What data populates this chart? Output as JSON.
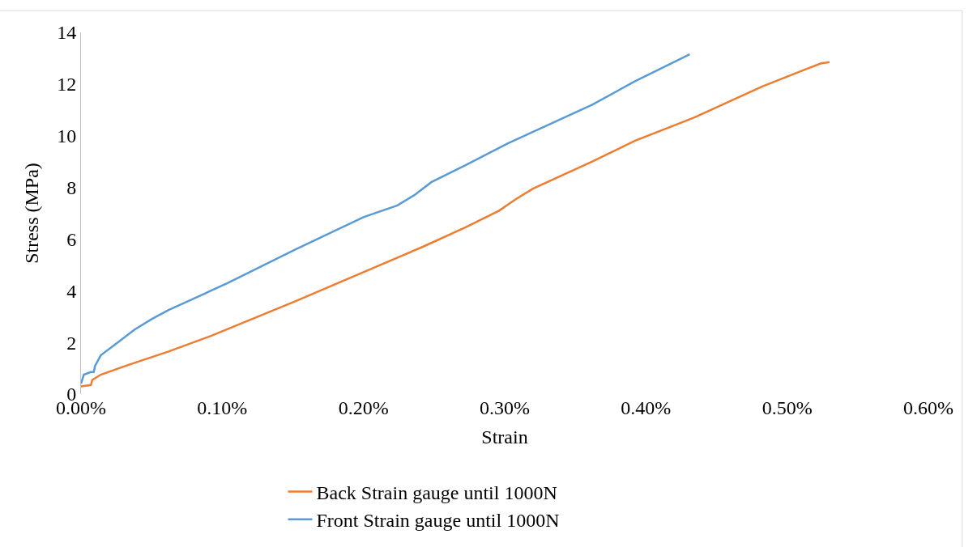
{
  "chart_data": {
    "type": "line",
    "xlabel": "Strain",
    "ylabel": "Stress (MPa)",
    "xlim": [
      0,
      0.006
    ],
    "xticks": [
      {
        "value": 0,
        "label": "0.00%"
      },
      {
        "value": 0.001,
        "label": "0.10%"
      },
      {
        "value": 0.002,
        "label": "0.20%"
      },
      {
        "value": 0.003,
        "label": "0.30%"
      },
      {
        "value": 0.004,
        "label": "0.40%"
      },
      {
        "value": 0.005,
        "label": "0.50%"
      },
      {
        "value": 0.006,
        "label": "0.60%"
      }
    ],
    "ylim": [
      0,
      14
    ],
    "yticks": [
      0,
      2,
      4,
      6,
      8,
      10,
      12,
      14
    ],
    "grid": false,
    "legend": "bottom",
    "marker": "none",
    "line_style": "solid",
    "series": [
      {
        "name": "Back Strain gauge until 1000N",
        "color": "#ed7d31",
        "x": [
          0,
          7e-05,
          8e-05,
          0.00014,
          0.00032,
          0.00062,
          0.00092,
          0.00152,
          0.00212,
          0.00242,
          0.00272,
          0.00296,
          0.00308,
          0.0032,
          0.00362,
          0.00392,
          0.00434,
          0.00482,
          0.00512,
          0.00524,
          0.0053
        ],
        "values": [
          0.3,
          0.35,
          0.55,
          0.75,
          1.1,
          1.65,
          2.25,
          3.6,
          5.0,
          5.7,
          6.45,
          7.1,
          7.55,
          7.95,
          9.0,
          9.8,
          10.7,
          11.9,
          12.55,
          12.8,
          12.85
        ]
      },
      {
        "name": "Front Strain gauge until 1000N",
        "color": "#5b9bd5",
        "x": [
          0,
          2e-05,
          7e-05,
          9e-05,
          0.0001,
          0.00014,
          0.00026,
          0.00038,
          0.0005,
          0.00062,
          0.0008,
          0.00104,
          0.00152,
          0.002,
          0.00224,
          0.00236,
          0.00248,
          0.00272,
          0.00302,
          0.00332,
          0.00362,
          0.00392,
          0.00431
        ],
        "values": [
          0.4,
          0.75,
          0.85,
          0.85,
          1.1,
          1.5,
          2.0,
          2.5,
          2.9,
          3.25,
          3.7,
          4.3,
          5.6,
          6.85,
          7.3,
          7.7,
          8.2,
          8.85,
          9.7,
          10.45,
          11.2,
          12.1,
          13.15
        ]
      }
    ]
  }
}
